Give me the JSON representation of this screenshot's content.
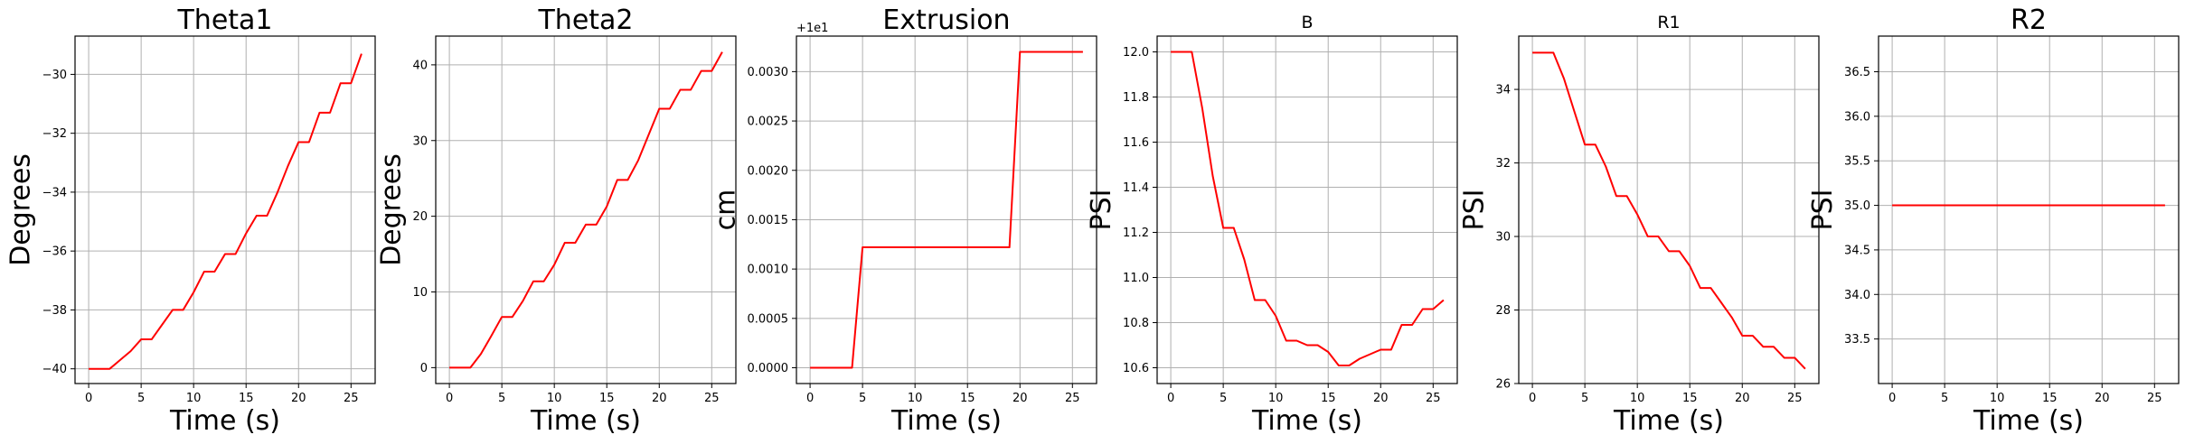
{
  "chart_data": [
    {
      "type": "line",
      "title": "Theta1",
      "title_size": "large",
      "xlabel": "Time (s)",
      "ylabel": "Degrees",
      "xlim": [
        -1.3,
        27.3
      ],
      "ylim": [
        -40.5,
        -28.7
      ],
      "xticks": [
        0,
        5,
        10,
        15,
        20,
        25
      ],
      "xtick_labels": [
        "0",
        "5",
        "10",
        "15",
        "20",
        "25"
      ],
      "yticks": [
        -40,
        -38,
        -36,
        -34,
        -32,
        -30
      ],
      "ytick_labels": [
        "−40",
        "−38",
        "−36",
        "−34",
        "−32",
        "−30"
      ],
      "offset_text": "",
      "grid": true,
      "line_color": "#ff0000",
      "series": [
        {
          "x": [
            0,
            1,
            2,
            3,
            4,
            5,
            6,
            7,
            8,
            9,
            10,
            11,
            12,
            13,
            14,
            15,
            16,
            17,
            18,
            19,
            20,
            21,
            22,
            23,
            24,
            25,
            26
          ],
          "y": [
            -40,
            -40,
            -40,
            -39.7,
            -39.4,
            -39,
            -39,
            -38.5,
            -38,
            -38,
            -37.4,
            -36.7,
            -36.7,
            -36.1,
            -36.1,
            -35.4,
            -34.8,
            -34.8,
            -34,
            -33.1,
            -32.3,
            -32.3,
            -31.3,
            -31.3,
            -30.3,
            -30.3,
            -29.3
          ]
        }
      ]
    },
    {
      "type": "line",
      "title": "Theta2",
      "title_size": "large",
      "xlabel": "Time (s)",
      "ylabel": "Degrees",
      "xlim": [
        -1.3,
        27.3
      ],
      "ylim": [
        -2.1,
        43.8
      ],
      "xticks": [
        0,
        5,
        10,
        15,
        20,
        25
      ],
      "xtick_labels": [
        "0",
        "5",
        "10",
        "15",
        "20",
        "25"
      ],
      "yticks": [
        0,
        10,
        20,
        30,
        40
      ],
      "ytick_labels": [
        "0",
        "10",
        "20",
        "30",
        "40"
      ],
      "offset_text": "",
      "grid": true,
      "line_color": "#ff0000",
      "series": [
        {
          "x": [
            0,
            1,
            2,
            3,
            4,
            5,
            6,
            7,
            8,
            9,
            10,
            11,
            12,
            13,
            14,
            15,
            16,
            17,
            18,
            19,
            20,
            21,
            22,
            23,
            24,
            25,
            26
          ],
          "y": [
            0,
            0,
            0,
            1.8,
            4.2,
            6.7,
            6.7,
            8.8,
            11.4,
            11.4,
            13.6,
            16.5,
            16.5,
            18.9,
            18.9,
            21.3,
            24.8,
            24.8,
            27.4,
            30.8,
            34.2,
            34.2,
            36.7,
            36.7,
            39.2,
            39.2,
            41.7
          ]
        }
      ]
    },
    {
      "type": "line",
      "title": "Extrusion",
      "title_size": "large",
      "xlabel": "Time (s)",
      "ylabel": "cm",
      "xlim": [
        -1.3,
        27.3
      ],
      "ylim": [
        -0.00016,
        0.00336
      ],
      "xticks": [
        0,
        5,
        10,
        15,
        20,
        25
      ],
      "xtick_labels": [
        "0",
        "5",
        "10",
        "15",
        "20",
        "25"
      ],
      "yticks": [
        0,
        0.0005,
        0.001,
        0.0015,
        0.002,
        0.0025,
        0.003
      ],
      "ytick_labels": [
        "0.0000",
        "0.0005",
        "0.0010",
        "0.0015",
        "0.0020",
        "0.0025",
        "0.0030"
      ],
      "offset_text": "+1e1",
      "grid": true,
      "line_color": "#ff0000",
      "series": [
        {
          "x": [
            0,
            4,
            5,
            19,
            20,
            26
          ],
          "y": [
            0,
            0,
            0.00122,
            0.00122,
            0.0032,
            0.0032
          ]
        }
      ]
    },
    {
      "type": "line",
      "title": "B",
      "title_size": "small",
      "xlabel": "Time (s)",
      "ylabel": "PSI",
      "xlim": [
        -1.3,
        27.3
      ],
      "ylim": [
        10.53,
        12.07
      ],
      "xticks": [
        0,
        5,
        10,
        15,
        20,
        25
      ],
      "xtick_labels": [
        "0",
        "5",
        "10",
        "15",
        "20",
        "25"
      ],
      "yticks": [
        10.6,
        10.8,
        11.0,
        11.2,
        11.4,
        11.6,
        11.8,
        12.0
      ],
      "ytick_labels": [
        "10.6",
        "10.8",
        "11.0",
        "11.2",
        "11.4",
        "11.6",
        "11.8",
        "12.0"
      ],
      "offset_text": "",
      "grid": true,
      "line_color": "#ff0000",
      "series": [
        {
          "x": [
            0,
            1,
            2,
            3,
            4,
            5,
            6,
            7,
            8,
            9,
            10,
            11,
            12,
            13,
            14,
            15,
            16,
            17,
            18,
            19,
            20,
            21,
            22,
            23,
            24,
            25,
            26
          ],
          "y": [
            12.0,
            12.0,
            12.0,
            11.75,
            11.45,
            11.22,
            11.22,
            11.08,
            10.9,
            10.9,
            10.83,
            10.72,
            10.72,
            10.7,
            10.7,
            10.67,
            10.61,
            10.61,
            10.64,
            10.66,
            10.68,
            10.68,
            10.79,
            10.79,
            10.86,
            10.86,
            10.9
          ]
        }
      ]
    },
    {
      "type": "line",
      "title": "R1",
      "title_size": "small",
      "xlabel": "Time (s)",
      "ylabel": "PSI",
      "xlim": [
        -1.3,
        27.3
      ],
      "ylim": [
        26.0,
        35.45
      ],
      "xticks": [
        0,
        5,
        10,
        15,
        20,
        25
      ],
      "xtick_labels": [
        "0",
        "5",
        "10",
        "15",
        "20",
        "25"
      ],
      "yticks": [
        26,
        28,
        30,
        32,
        34
      ],
      "ytick_labels": [
        "26",
        "28",
        "30",
        "32",
        "34"
      ],
      "offset_text": "",
      "grid": true,
      "line_color": "#ff0000",
      "series": [
        {
          "x": [
            0,
            1,
            2,
            3,
            4,
            5,
            6,
            7,
            8,
            9,
            10,
            11,
            12,
            13,
            14,
            15,
            16,
            17,
            18,
            19,
            20,
            21,
            22,
            23,
            24,
            25,
            26
          ],
          "y": [
            35,
            35,
            35,
            34.3,
            33.4,
            32.5,
            32.5,
            31.9,
            31.1,
            31.1,
            30.6,
            30,
            30,
            29.6,
            29.6,
            29.2,
            28.6,
            28.6,
            28.2,
            27.8,
            27.3,
            27.3,
            27,
            27,
            26.7,
            26.7,
            26.4
          ]
        }
      ]
    },
    {
      "type": "line",
      "title": "R2",
      "title_size": "large",
      "xlabel": "Time (s)",
      "ylabel": "PSI",
      "xlim": [
        -1.3,
        27.3
      ],
      "ylim": [
        33.0,
        36.9
      ],
      "xticks": [
        0,
        5,
        10,
        15,
        20,
        25
      ],
      "xtick_labels": [
        "0",
        "5",
        "10",
        "15",
        "20",
        "25"
      ],
      "yticks": [
        33.5,
        34.0,
        34.5,
        35.0,
        35.5,
        36.0,
        36.5
      ],
      "ytick_labels": [
        "33.5",
        "34.0",
        "34.5",
        "35.0",
        "35.5",
        "36.0",
        "36.5"
      ],
      "offset_text": "",
      "grid": true,
      "line_color": "#ff0000",
      "series": [
        {
          "x": [
            0,
            26
          ],
          "y": [
            35,
            35
          ]
        }
      ]
    }
  ]
}
